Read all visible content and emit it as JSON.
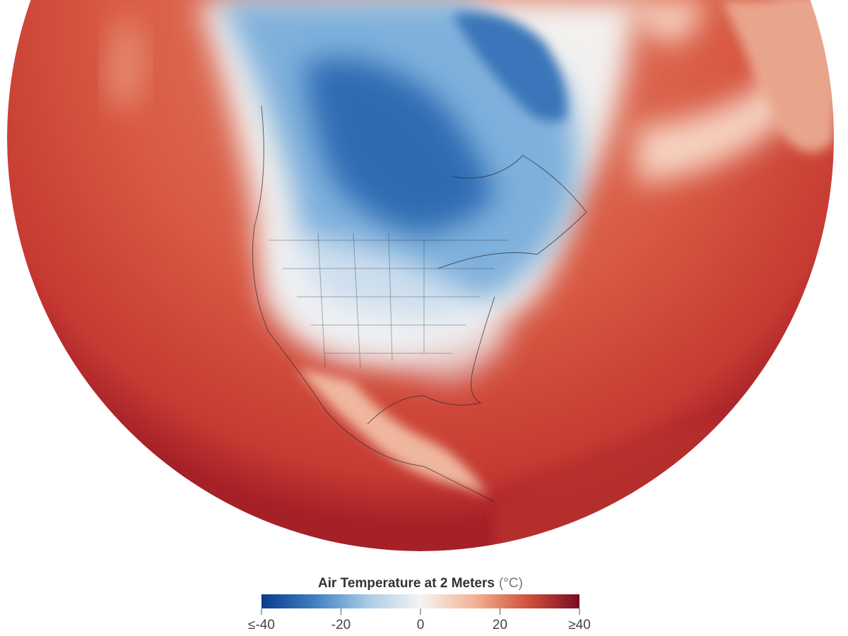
{
  "legend": {
    "title": "Air Temperature at 2 Meters",
    "unit": "(°C)",
    "range": [
      -40,
      40
    ],
    "ticks": [
      {
        "value": -40,
        "label": "≤-40"
      },
      -20,
      0,
      20,
      {
        "value": 40,
        "label": "≥40"
      }
    ],
    "colors": [
      "#0b3b8c",
      "#3f7fc2",
      "#a9cbe6",
      "#f4f4f4",
      "#f2b597",
      "#d4523d",
      "#7a0b22"
    ]
  }
}
